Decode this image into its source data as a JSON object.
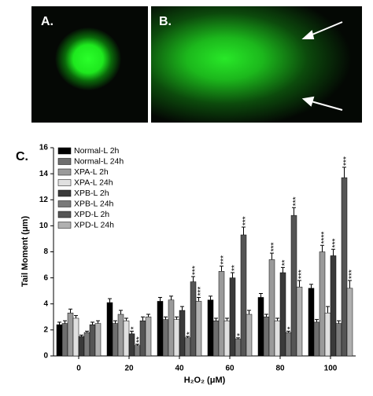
{
  "images": [
    {
      "label": "A."
    },
    {
      "label": "B."
    }
  ],
  "chart_data": {
    "type": "bar",
    "panel_label": "C.",
    "y_label": "Tail Moment (μm)",
    "x_label": "H₂O₂ (μM)",
    "categories": [
      "0",
      "20",
      "40",
      "60",
      "80",
      "100"
    ],
    "ylim": [
      0,
      16
    ],
    "yticks": [
      0,
      2,
      4,
      6,
      8,
      10,
      12,
      14,
      16
    ],
    "legend": "upper-left",
    "series": [
      {
        "name": "Normal-L 2h",
        "color": "#000000",
        "values": [
          2.4,
          4.1,
          4.2,
          4.3,
          4.5,
          5.2
        ],
        "errors": [
          0.2,
          0.3,
          0.3,
          0.3,
          0.3,
          0.3
        ],
        "significance": [
          null,
          null,
          null,
          null,
          null,
          null
        ]
      },
      {
        "name": "Normal-L 24h",
        "color": "#6e6e6e",
        "values": [
          2.5,
          2.5,
          2.8,
          2.7,
          3.0,
          2.6
        ],
        "errors": [
          0.2,
          0.2,
          0.2,
          0.2,
          0.2,
          0.2
        ],
        "significance": [
          null,
          null,
          null,
          null,
          null,
          null
        ]
      },
      {
        "name": "XPA-L 2h",
        "color": "#9a9a9a",
        "values": [
          3.3,
          3.2,
          4.3,
          6.5,
          7.4,
          8.0
        ],
        "errors": [
          0.3,
          0.3,
          0.3,
          0.4,
          0.5,
          0.5
        ],
        "significance": [
          null,
          null,
          null,
          "***",
          "***",
          "****"
        ]
      },
      {
        "name": "XPA-L 24h",
        "color": "#e0e0e0",
        "values": [
          2.9,
          2.7,
          2.8,
          2.7,
          2.7,
          3.3
        ],
        "errors": [
          0.2,
          0.2,
          0.2,
          0.2,
          0.2,
          0.5
        ],
        "significance": [
          null,
          null,
          null,
          null,
          null,
          null
        ]
      },
      {
        "name": "XPB-L 2h",
        "color": "#3a3a3a",
        "values": [
          1.5,
          1.7,
          3.5,
          6.0,
          6.4,
          7.7
        ],
        "errors": [
          0.1,
          0.2,
          0.3,
          0.4,
          0.4,
          0.5
        ],
        "significance": [
          null,
          "*",
          null,
          "**",
          "**",
          "***"
        ]
      },
      {
        "name": "XPB-L 24h",
        "color": "#7a7a7a",
        "values": [
          1.8,
          0.8,
          1.4,
          1.3,
          1.8,
          2.5
        ],
        "errors": [
          0.1,
          0.1,
          0.1,
          0.1,
          0.1,
          0.2
        ],
        "significance": [
          null,
          "**",
          "*",
          "*",
          "*",
          null
        ]
      },
      {
        "name": "XPD-L 2h",
        "color": "#555555",
        "values": [
          2.4,
          2.7,
          5.7,
          9.3,
          10.8,
          13.7
        ],
        "errors": [
          0.2,
          0.3,
          0.4,
          0.6,
          0.6,
          0.8
        ],
        "significance": [
          null,
          null,
          "***",
          "***",
          "***",
          "***"
        ]
      },
      {
        "name": "XPD-L 24h",
        "color": "#b0b0b0",
        "values": [
          2.5,
          3.0,
          4.2,
          3.2,
          5.3,
          5.2
        ],
        "errors": [
          0.2,
          0.2,
          0.3,
          0.3,
          0.5,
          0.6
        ],
        "significance": [
          null,
          null,
          "***",
          null,
          "***",
          "***"
        ]
      }
    ]
  }
}
